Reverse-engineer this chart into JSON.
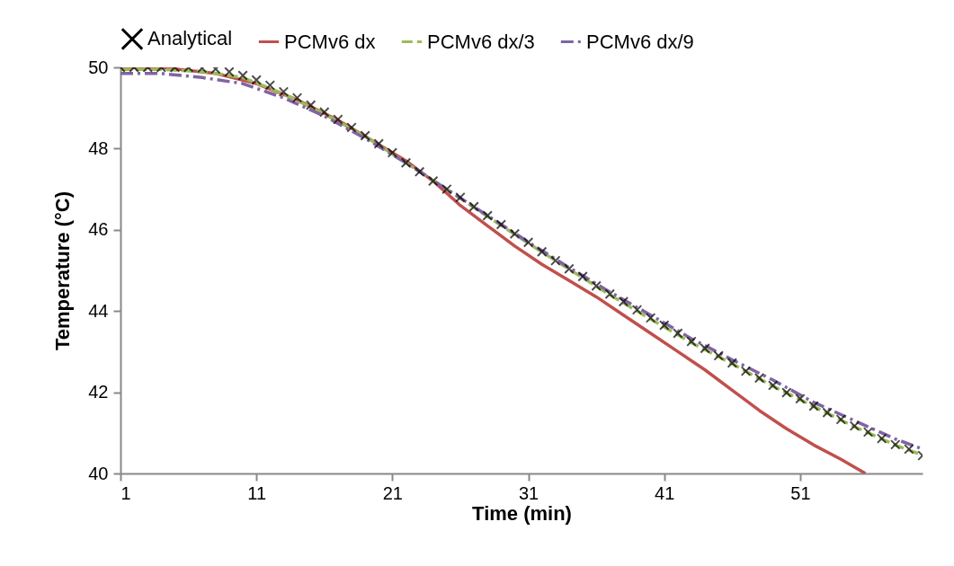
{
  "chart_data": {
    "type": "line",
    "xlabel": "Time (min)",
    "ylabel": "Temperature (°C)",
    "xlim": [
      1,
      60
    ],
    "xticks": [
      1,
      11,
      21,
      31,
      41,
      51
    ],
    "ylim": [
      40,
      50
    ],
    "yticks": [
      40,
      42,
      44,
      46,
      48,
      50
    ],
    "grid": false,
    "legend": "top",
    "series": [
      {
        "name": "Analytical",
        "type": "scatter",
        "marker": "cross",
        "color": "#000000",
        "x": [
          1,
          2,
          3,
          4,
          5,
          6,
          7,
          8,
          9,
          10,
          11,
          12,
          13,
          14,
          15,
          16,
          17,
          18,
          19,
          20,
          21,
          22,
          23,
          24,
          25,
          26,
          27,
          28,
          29,
          30,
          31,
          32,
          33,
          34,
          35,
          36,
          37,
          38,
          39,
          40,
          41,
          42,
          43,
          44,
          45,
          46,
          47,
          48,
          49,
          50,
          51,
          52,
          53,
          54,
          55,
          56,
          57,
          58,
          59,
          60
        ],
        "values": [
          50,
          50,
          50,
          50,
          50,
          50,
          49.98,
          49.96,
          49.89,
          49.8,
          49.69,
          49.56,
          49.4,
          49.25,
          49.07,
          48.9,
          48.72,
          48.52,
          48.32,
          48.12,
          47.9,
          47.65,
          47.43,
          47.2,
          47,
          46.8,
          46.57,
          46.35,
          46.13,
          45.9,
          45.69,
          45.46,
          45.24,
          45.04,
          44.85,
          44.62,
          44.42,
          44.23,
          44.03,
          43.83,
          43.65,
          43.45,
          43.25,
          43.08,
          42.9,
          42.72,
          42.52,
          42.35,
          42.17,
          41.99,
          41.84,
          41.66,
          41.5,
          41.33,
          41.17,
          41.02,
          40.86,
          40.71,
          40.6,
          40.44
        ]
      },
      {
        "name": "PCMv6 dx",
        "color": "#c0504d",
        "line_style": "solid",
        "x": [
          1,
          4,
          8,
          11,
          14,
          17,
          19,
          22,
          24,
          26,
          28,
          30,
          32,
          34,
          36,
          38,
          40,
          42,
          44,
          46,
          48,
          50,
          52,
          54,
          55.8
        ],
        "values": [
          50,
          50,
          49.85,
          49.6,
          49.2,
          48.7,
          48.3,
          47.7,
          47.2,
          46.6,
          46.1,
          45.6,
          45.15,
          44.75,
          44.35,
          43.9,
          43.45,
          43,
          42.55,
          42.05,
          41.55,
          41.1,
          40.7,
          40.35,
          40
        ]
      },
      {
        "name": "PCMv6 dx/3",
        "color": "#9bbb59",
        "line_style": "dashed",
        "x": [
          1,
          4,
          7,
          10,
          13,
          16,
          19,
          22,
          25,
          28,
          31,
          34,
          37,
          40,
          43,
          46,
          49,
          52,
          55,
          58,
          60
        ],
        "values": [
          49.95,
          49.95,
          49.9,
          49.75,
          49.35,
          48.85,
          48.3,
          47.65,
          47,
          46.33,
          45.67,
          45.03,
          44.4,
          43.8,
          43.22,
          42.7,
          42.15,
          41.65,
          41.15,
          40.7,
          40.45
        ]
      },
      {
        "name": "PCMv6 dx/9",
        "color": "#8064a2",
        "line_style": "dashdot",
        "x": [
          1,
          4,
          7,
          10,
          13,
          16,
          19,
          22,
          25,
          28,
          31,
          34,
          37,
          40,
          43,
          46,
          49,
          52,
          55,
          58,
          60
        ],
        "values": [
          49.85,
          49.85,
          49.75,
          49.6,
          49.25,
          48.8,
          48.25,
          47.65,
          47,
          46.35,
          45.7,
          45.07,
          44.47,
          43.9,
          43.32,
          42.8,
          42.3,
          41.75,
          41.3,
          40.85,
          40.6
        ]
      }
    ]
  }
}
